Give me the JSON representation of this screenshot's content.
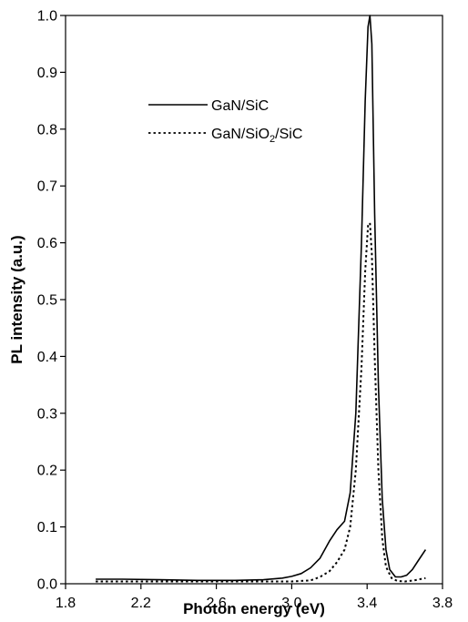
{
  "chart_data": {
    "type": "line",
    "title": "",
    "xlabel": "Photon energy (eV)",
    "ylabel": "PL intensity (a.u.)",
    "xlim": [
      1.8,
      3.8
    ],
    "ylim": [
      0.0,
      1.0
    ],
    "xticks": [
      1.8,
      2.2,
      2.6,
      3.0,
      3.4,
      3.8
    ],
    "xtick_labels": [
      "1.8",
      "2.2",
      "2.6",
      "3.0",
      "3.4",
      "3.8"
    ],
    "yticks": [
      0.0,
      0.1,
      0.2,
      0.3,
      0.4,
      0.5,
      0.6,
      0.7,
      0.8,
      0.9,
      1.0
    ],
    "ytick_labels": [
      "0.0",
      "0.1",
      "0.2",
      "0.3",
      "0.4",
      "0.5",
      "0.6",
      "0.7",
      "0.8",
      "0.9",
      "1.0"
    ],
    "grid": false,
    "legend_position": "top-left",
    "legend": {
      "entry1": "GaN/SiC",
      "entry2_prefix": "GaN/SiO",
      "entry2_sub": "2",
      "entry2_suffix": "/SiC"
    },
    "series": [
      {
        "name": "GaN/SiC",
        "style": "solid",
        "x": [
          1.96,
          2.1,
          2.3,
          2.5,
          2.7,
          2.85,
          2.95,
          3.0,
          3.05,
          3.1,
          3.15,
          3.2,
          3.24,
          3.28,
          3.31,
          3.34,
          3.37,
          3.39,
          3.405,
          3.415,
          3.425,
          3.44,
          3.46,
          3.48,
          3.5,
          3.52,
          3.55,
          3.58,
          3.61,
          3.64,
          3.67,
          3.71
        ],
        "y": [
          0.008,
          0.008,
          0.007,
          0.006,
          0.006,
          0.007,
          0.01,
          0.013,
          0.018,
          0.028,
          0.045,
          0.075,
          0.095,
          0.11,
          0.16,
          0.3,
          0.6,
          0.85,
          0.98,
          1.0,
          0.95,
          0.65,
          0.35,
          0.15,
          0.06,
          0.025,
          0.012,
          0.012,
          0.015,
          0.025,
          0.04,
          0.06
        ]
      },
      {
        "name": "GaN/SiO2/SiC",
        "style": "dotted",
        "x": [
          1.96,
          2.2,
          2.5,
          2.8,
          3.0,
          3.1,
          3.15,
          3.2,
          3.24,
          3.28,
          3.31,
          3.34,
          3.37,
          3.39,
          3.405,
          3.415,
          3.425,
          3.44,
          3.46,
          3.48,
          3.5,
          3.53,
          3.56,
          3.6,
          3.65,
          3.71
        ],
        "y": [
          0.004,
          0.004,
          0.004,
          0.004,
          0.004,
          0.006,
          0.012,
          0.022,
          0.038,
          0.06,
          0.1,
          0.2,
          0.38,
          0.55,
          0.63,
          0.635,
          0.58,
          0.4,
          0.2,
          0.08,
          0.03,
          0.01,
          0.005,
          0.004,
          0.006,
          0.01
        ]
      }
    ]
  }
}
